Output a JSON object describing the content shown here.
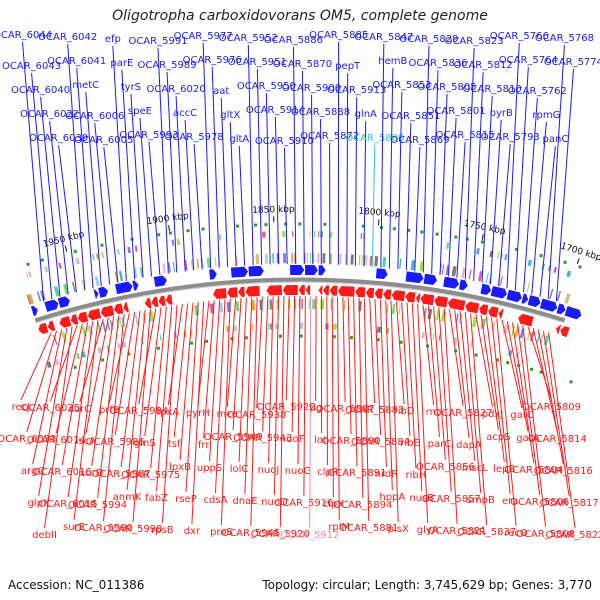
{
  "title": "Oligotropha carboxidovorans OM5, complete genome",
  "footer": {
    "accession": "Accession: NC_011386",
    "summary": "Topology: circular; Length: 3,745,629 bp; Genes: 3,770"
  },
  "colors": {
    "forward": "#1a1aff",
    "reverse": "#ff1a1a",
    "forward_highlight": "#2ec2d8",
    "reverse_highlight": "#f08aa0",
    "backbone": "#8c8c8c"
  },
  "ticks": [
    "1950 kbp",
    "1900 kbp",
    "1850 kbp",
    "1800 kbp",
    "1750 kbp",
    "1700 kbp"
  ],
  "forward_labels": [
    "OCAR_6044",
    "OCAR_6043",
    "OCAR_6040",
    "OCAR_6022",
    "OCAR_6039",
    "OCAR_6042",
    "OCAR_6041",
    "metC",
    "OCAR_6006",
    "OCAR_6005",
    "efp",
    "parE",
    "tyrS",
    "speE",
    "OCAR_5993",
    "OCAR_5991",
    "OCAR_5989",
    "OCAR_6020",
    "accC",
    "OCAR_5978",
    "OCAR_5977",
    "OCAR_5976",
    "aat",
    "gltX",
    "gltA",
    "OCAR_5952",
    "OCAR_5951",
    "OCAR_5950",
    "OCAR_5914",
    "OCAR_5910",
    "OCAR_5886",
    "OCAR_5870",
    "OCAR_5900",
    "OCAR_5888",
    "OCAR_5872",
    "OCAR_5885",
    "pepT",
    "OCAR_5913",
    "glnA",
    "OCAR_5880",
    "OCAR_5847",
    "hemB",
    "OCAR_5853",
    "OCAR_5851",
    "OCAR_5869",
    "OCAR_5829",
    "OCAR_5836",
    "OCAR_5805",
    "OCAR_5801",
    "OCAR_5815",
    "OCAR_5823",
    "OCAR_5812",
    "OCAR_5810",
    "pyrB",
    "OCAR_5793",
    "OCAR_5766",
    "OCAR_5764",
    "OCAR_5762",
    "rpmG",
    "panC",
    "OCAR_5768",
    "OCAR_5774"
  ],
  "reverse_labels": [
    "recJ",
    "OCAR_6033",
    "argC",
    "glpX",
    "debII",
    "OCAR_6025",
    "OCAR_6014",
    "OCAR_6016",
    "OCAR_6015",
    "surE",
    "surC",
    "iscA",
    "surD",
    "OCAR_5994",
    "OCAR_5990",
    "prfB",
    "OCAR_5986",
    "OCAR_5987",
    "anmK",
    "OCAR_5998",
    "OCAR_5984",
    "glnS",
    "OCAR_5975",
    "fabZ",
    "rpsB",
    "lpxA",
    "tsf",
    "lpxB",
    "rseP",
    "dxr",
    "pyrH",
    "frr",
    "uppS",
    "cdsA",
    "proS",
    "mce",
    "OCAR_5949",
    "lolC",
    "dnaE",
    "OCAR_5945",
    "OCAR_5938",
    "OCAR_5943",
    "nuoJ",
    "nuoD",
    "OCAR_5920",
    "OCAR_5922",
    "nuoF",
    "nuoG",
    "OCAR_5916",
    "OCAR_5912",
    "tig",
    "lon",
    "clpP",
    "clpX",
    "rplM",
    "OCAR_5887",
    "OCAR_5890",
    "OCAR_5891",
    "OCAR_5894",
    "OCAR_5881",
    "OCAR_5883",
    "OCAR_5884",
    "nrdR",
    "hppA",
    "plsX",
    "ribD",
    "ribE",
    "ribH",
    "nusB",
    "glyA",
    "rnc",
    "parC",
    "OCAR_5856",
    "OCAR_5857",
    "OCAR_5821",
    "OCAR_5827",
    "dapA",
    "mscL",
    "smpB",
    "OCAR_5837",
    "pdxJ",
    "acpS",
    "lepB",
    "era",
    "recO",
    "gatC",
    "gatA",
    "OCAR_5804",
    "OCAR_5806",
    "OCAR_5808",
    "OCAR_5809",
    "OCAR_5814",
    "OCAR_5816",
    "OCAR_5817",
    "OCAR_5822"
  ]
}
